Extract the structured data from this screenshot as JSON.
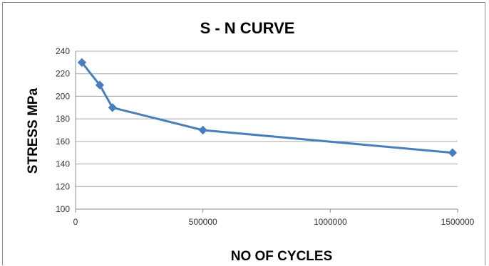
{
  "chart_data": {
    "type": "line",
    "title": "S - N CURVE",
    "xlabel": "NO OF CYCLES",
    "ylabel": "STRESS MPa",
    "xlim": [
      0,
      1500000
    ],
    "ylim": [
      100,
      240
    ],
    "xticks": [
      0,
      500000,
      1000000,
      1500000
    ],
    "yticks": [
      100,
      120,
      140,
      160,
      180,
      200,
      220,
      240
    ],
    "x_tick_labels": [
      "0",
      "500000",
      "1000000",
      "1500000"
    ],
    "y_tick_labels": [
      "100",
      "120",
      "140",
      "160",
      "180",
      "200",
      "220",
      "240"
    ],
    "grid": "horizontal",
    "legend": "none",
    "series": [
      {
        "color": "#4a7ebb",
        "marker": "diamond",
        "x": [
          25000,
          95000,
          145000,
          500000,
          1480000
        ],
        "y": [
          230,
          210,
          190,
          170,
          150
        ]
      }
    ]
  }
}
